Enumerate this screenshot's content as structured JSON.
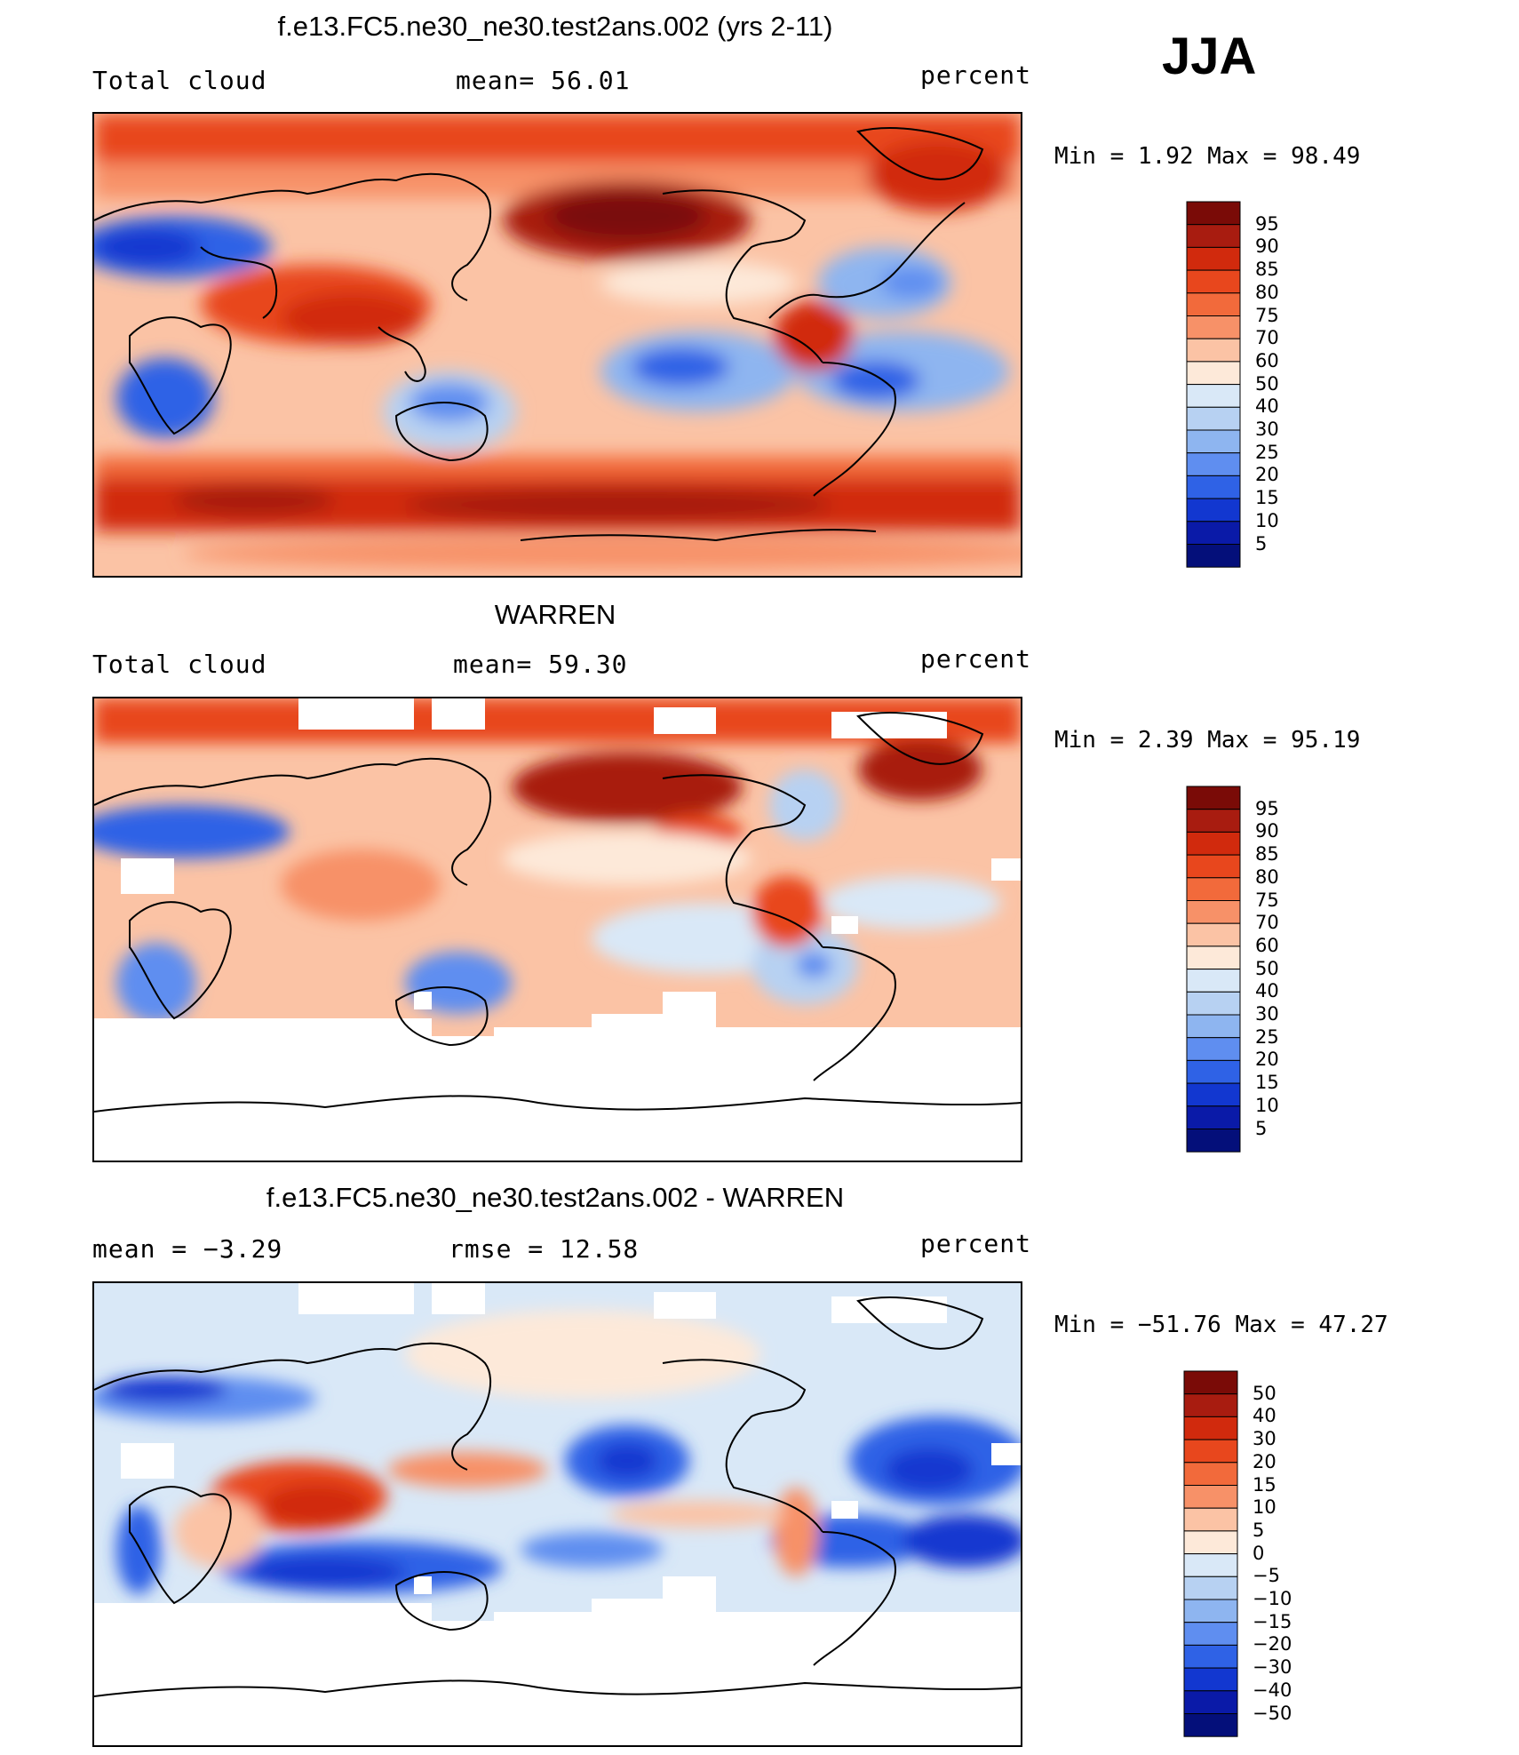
{
  "season_label": "JJA",
  "panels": [
    {
      "id": "model",
      "title": "f.e13.FC5.ne30_ne30.test2ans.002 (yrs 2-11)",
      "left_label": "Total cloud",
      "center_label": "mean=   56.01",
      "right_label": "percent",
      "minmax": "Min =    1.92 Max =   98.49",
      "colorbar": [
        "95",
        "90",
        "85",
        "80",
        "75",
        "70",
        "60",
        "50",
        "40",
        "30",
        "25",
        "20",
        "15",
        "10",
        "5"
      ]
    },
    {
      "id": "obs",
      "title": "WARREN",
      "left_label": "Total cloud",
      "center_label": "mean=   59.30",
      "right_label": "percent",
      "minmax": "Min =    2.39 Max =   95.19",
      "colorbar": [
        "95",
        "90",
        "85",
        "80",
        "75",
        "70",
        "60",
        "50",
        "40",
        "30",
        "25",
        "20",
        "15",
        "10",
        "5"
      ]
    },
    {
      "id": "diff",
      "title": "f.e13.FC5.ne30_ne30.test2ans.002 - WARREN",
      "left_label": "mean =   −3.29",
      "center_label": "rmse =   12.58",
      "right_label": "percent",
      "minmax": "Min = −51.76 Max =   47.27",
      "colorbar": [
        "50",
        "40",
        "30",
        "20",
        "15",
        "10",
        "5",
        "0",
        "−5",
        "−10",
        "−15",
        "−20",
        "−30",
        "−40",
        "−50"
      ]
    }
  ],
  "colors": {
    "colorbar_scale": [
      "#7a0b07",
      "#a81c10",
      "#d12a0d",
      "#e8471d",
      "#f26a3b",
      "#f79168",
      "#fbc3a5",
      "#fde9d9",
      "#d9e8f7",
      "#b7d1f2",
      "#8eb5f0",
      "#5f8ef0",
      "#2f62e6",
      "#1237d0",
      "#0a1aa8",
      "#040f7a"
    ],
    "land_outline": "#000000"
  }
}
